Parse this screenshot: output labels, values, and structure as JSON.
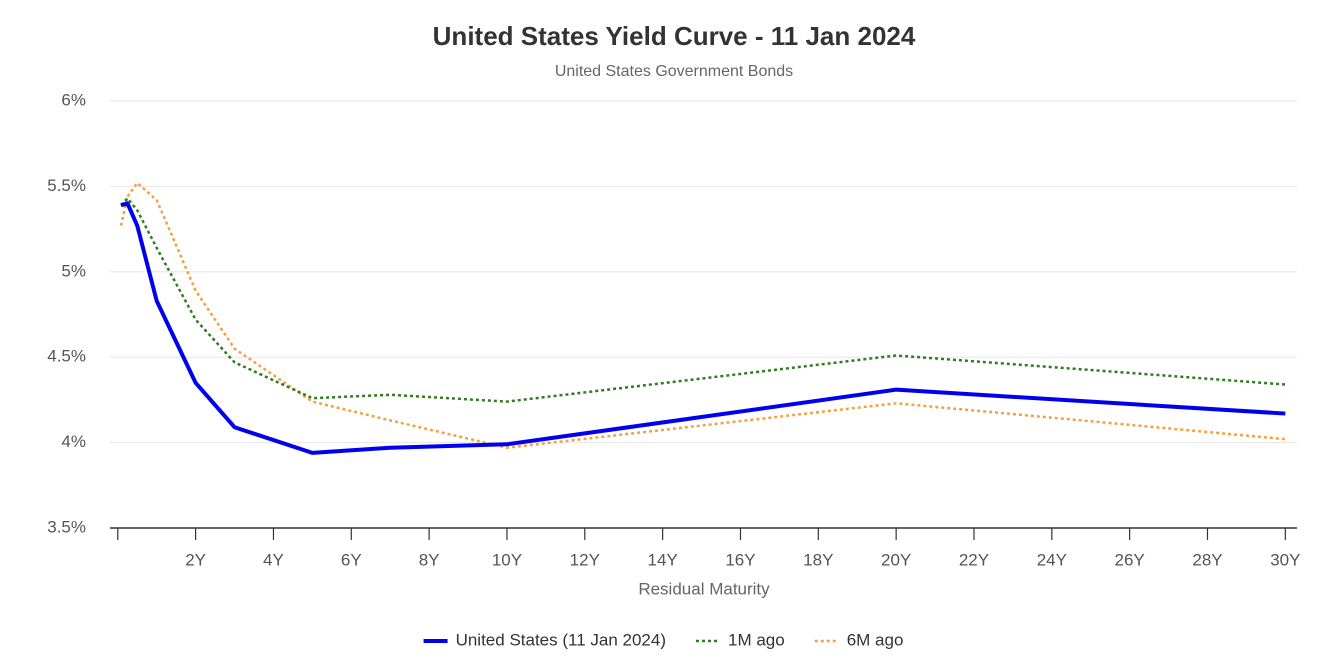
{
  "chart_data": {
    "type": "line",
    "title": "United States Yield Curve - 11 Jan 2024",
    "subtitle": "United States Government Bonds",
    "x_label": "Residual Maturity",
    "x": [
      0.083,
      0.25,
      0.5,
      1,
      2,
      3,
      5,
      7,
      10,
      20,
      30
    ],
    "xlim": [
      -0.2,
      30.3
    ],
    "xticks": [
      {
        "value": 0,
        "label": null
      },
      {
        "value": 2,
        "label": "2Y"
      },
      {
        "value": 4,
        "label": "4Y"
      },
      {
        "value": 6,
        "label": "6Y"
      },
      {
        "value": 8,
        "label": "8Y"
      },
      {
        "value": 10,
        "label": "10Y"
      },
      {
        "value": 12,
        "label": "12Y"
      },
      {
        "value": 14,
        "label": "14Y"
      },
      {
        "value": 16,
        "label": "16Y"
      },
      {
        "value": 18,
        "label": "18Y"
      },
      {
        "value": 20,
        "label": "20Y"
      },
      {
        "value": 22,
        "label": "22Y"
      },
      {
        "value": 24,
        "label": "24Y"
      },
      {
        "value": 26,
        "label": "26Y"
      },
      {
        "value": 28,
        "label": "28Y"
      },
      {
        "value": 30,
        "label": "30Y"
      }
    ],
    "ylim": [
      3.5,
      6
    ],
    "yticks": [
      {
        "value": 3.5,
        "label": "3.5%"
      },
      {
        "value": 4,
        "label": "4%"
      },
      {
        "value": 4.5,
        "label": "4.5%"
      },
      {
        "value": 5,
        "label": "5%"
      },
      {
        "value": 5.5,
        "label": "5.5%"
      },
      {
        "value": 6,
        "label": "6%"
      }
    ],
    "grid": true,
    "legend": "bottom",
    "series": [
      {
        "name": "United States (11 Jan 2024)",
        "color": "#0000ee",
        "style": "solid",
        "values": [
          5.39,
          5.4,
          5.27,
          4.83,
          4.35,
          4.09,
          3.94,
          3.97,
          3.99,
          4.31,
          4.17
        ]
      },
      {
        "name": "1M ago",
        "color": "#2e7d1e",
        "style": "dotted",
        "values": [
          5.39,
          5.43,
          5.36,
          5.14,
          4.72,
          4.47,
          4.26,
          4.28,
          4.24,
          4.51,
          4.34
        ]
      },
      {
        "name": "6M ago",
        "color": "#f5a040",
        "style": "dotted",
        "values": [
          5.27,
          5.44,
          5.52,
          5.42,
          4.89,
          4.55,
          4.24,
          4.13,
          3.97,
          4.23,
          4.02
        ]
      }
    ]
  }
}
